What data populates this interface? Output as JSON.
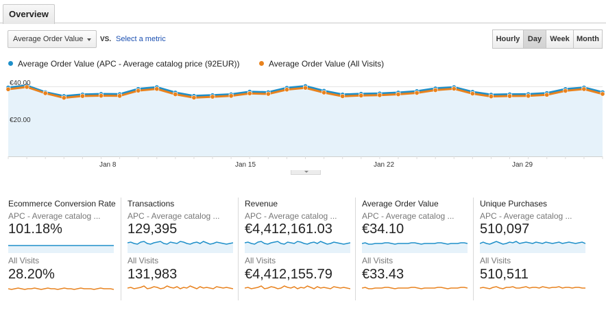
{
  "tabs": {
    "overview": "Overview"
  },
  "metric_select": {
    "value": "Average Order Value"
  },
  "compare": {
    "vs_label": "VS.",
    "select_metric_label": "Select a metric"
  },
  "granularity": {
    "hourly": "Hourly",
    "day": "Day",
    "week": "Week",
    "month": "Month",
    "selected": "Day"
  },
  "legend": {
    "series1": "Average Order Value (APC - Average catalog price (92EUR))",
    "series2": "Average Order Value (All Visits)"
  },
  "colors": {
    "series1": "#1e8fc9",
    "series2": "#e8821e",
    "area": "#e6f2fa"
  },
  "chart_data": {
    "type": "line",
    "y_tick_labels": [
      "€40.00",
      "€20.00"
    ],
    "x_tick_labels": [
      "Jan 8",
      "Jan 15",
      "Jan 22",
      "Jan 29"
    ],
    "ylim": [
      0,
      48
    ],
    "series": [
      {
        "name": "Average Order Value (APC - Average catalog price (92EUR))",
        "values": [
          39.5,
          40.6,
          36.8,
          34.6,
          35.5,
          35.8,
          35.7,
          38.7,
          39.7,
          36.6,
          34.7,
          35.1,
          35.6,
          37.1,
          36.8,
          39.3,
          40.3,
          37.6,
          35.5,
          35.9,
          36.1,
          36.6,
          37.4,
          39.0,
          39.7,
          37.0,
          35.4,
          35.6,
          35.7,
          36.3,
          38.6,
          39.5,
          36.8
        ]
      },
      {
        "name": "Average Order Value (All Visits)",
        "values": [
          38.5,
          39.8,
          36.2,
          33.6,
          34.6,
          34.8,
          34.7,
          37.7,
          38.7,
          35.6,
          33.7,
          34.2,
          34.7,
          36.1,
          35.8,
          38.3,
          39.3,
          36.6,
          34.5,
          34.9,
          35.1,
          35.6,
          36.4,
          38.0,
          38.8,
          36.0,
          34.4,
          34.6,
          34.7,
          35.3,
          37.6,
          38.6,
          35.8
        ]
      }
    ]
  },
  "scorecards": [
    {
      "title": "Ecommerce Conversion Rate",
      "seg1_label": "APC - Average catalog ...",
      "seg1_value": "101.18%",
      "seg2_label": "All Visits",
      "seg2_value": "28.20%"
    },
    {
      "title": "Transactions",
      "seg1_label": "APC - Average catalog ...",
      "seg1_value": "129,395",
      "seg2_label": "All Visits",
      "seg2_value": "131,983"
    },
    {
      "title": "Revenue",
      "seg1_label": "APC - Average catalog ...",
      "seg1_value": "€4,412,161.03",
      "seg2_label": "All Visits",
      "seg2_value": "€4,412,155.79"
    },
    {
      "title": "Average Order Value",
      "seg1_label": "APC - Average catalog ...",
      "seg1_value": "€34.10",
      "seg2_label": "All Visits",
      "seg2_value": "€33.43"
    },
    {
      "title": "Unique Purchases",
      "seg1_label": "APC - Average catalog ...",
      "seg1_value": "510,097",
      "seg2_label": "All Visits",
      "seg2_value": "510,511"
    }
  ]
}
